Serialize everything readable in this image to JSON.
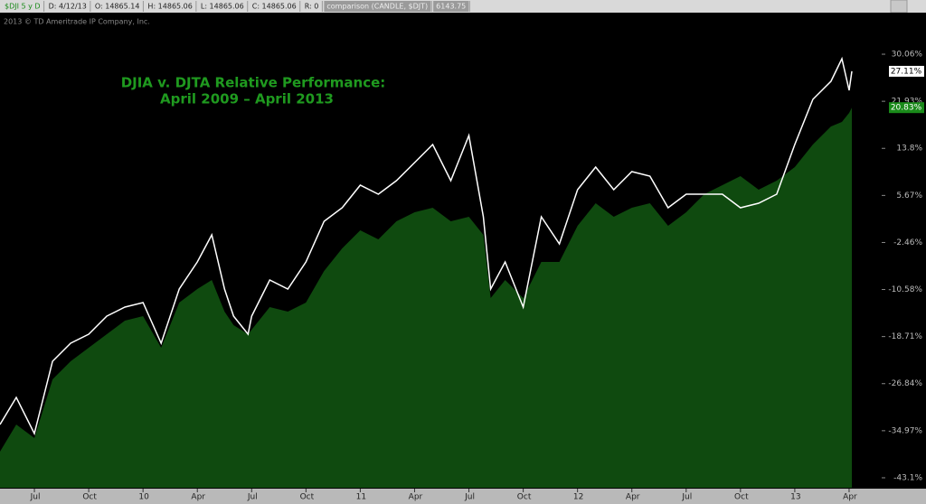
{
  "header": {
    "symbol": "$DJI 5 y D",
    "fields": [
      "D: 4/12/13",
      "O: 14865.14",
      "H: 14865.06",
      "L: 14865.06",
      "C: 14865.06",
      "R: 0"
    ],
    "comparison": "comparison (CANDLE, $DJT)",
    "comparison_value": "6143.75",
    "copyright": "2013 © TD Ameritrade IP Company, Inc."
  },
  "chart_data": {
    "type": "line",
    "title": "DJIA v. DJTA Relative Performance:",
    "subtitle": "April 2009 – April 2013",
    "grid": false,
    "x": [
      1.1,
      2,
      3,
      4,
      5,
      6,
      7,
      8,
      9,
      10,
      11,
      12,
      12.8,
      13.5,
      14,
      14.8,
      15,
      16,
      17,
      18,
      19,
      20,
      21,
      22,
      23,
      24,
      25,
      26,
      27,
      27.8,
      28.2,
      29,
      30,
      31,
      32,
      33,
      34,
      35,
      36,
      37,
      38,
      39,
      40,
      41,
      42,
      43,
      44,
      45,
      46,
      47,
      47.6,
      48,
      48.15
    ],
    "xlim": [
      1.1,
      49.8
    ],
    "xticks": [
      {
        "value": 3,
        "label": "Jul"
      },
      {
        "value": 6,
        "label": "Oct"
      },
      {
        "value": 9,
        "label": "10"
      },
      {
        "value": 12,
        "label": "Apr"
      },
      {
        "value": 15,
        "label": "Jul"
      },
      {
        "value": 18,
        "label": "Oct"
      },
      {
        "value": 21,
        "label": "11"
      },
      {
        "value": 24,
        "label": "Apr"
      },
      {
        "value": 27,
        "label": "Jul"
      },
      {
        "value": 30,
        "label": "Oct"
      },
      {
        "value": 33,
        "label": "12"
      },
      {
        "value": 36,
        "label": "Apr"
      },
      {
        "value": 39,
        "label": "Jul"
      },
      {
        "value": 42,
        "label": "Oct"
      },
      {
        "value": 45,
        "label": "13"
      },
      {
        "value": 48,
        "label": "Apr"
      }
    ],
    "ylim": [
      -44.82,
      37.24
    ],
    "yticks": [
      {
        "value": 30.06,
        "label": "30.06%"
      },
      {
        "value": 21.93,
        "label": "21.93%"
      },
      {
        "value": 13.8,
        "label": "13.8%"
      },
      {
        "value": 5.67,
        "label": "5.67%"
      },
      {
        "value": -2.46,
        "label": "-2.46%"
      },
      {
        "value": -10.58,
        "label": "-10.58%"
      },
      {
        "value": -18.71,
        "label": "-18.71%"
      },
      {
        "value": -26.84,
        "label": "-26.84%"
      },
      {
        "value": -34.97,
        "label": "-34.97%"
      },
      {
        "value": -43.1,
        "label": "-43.1%"
      }
    ],
    "series": [
      {
        "style": "area",
        "color": "#0f4a0f",
        "flag_color": "#1a8a1a",
        "last_value_label": "20.83%",
        "values": [
          -38.58,
          -33.9,
          -36.24,
          -26.1,
          -22.98,
          -20.64,
          -18.3,
          -15.96,
          -15.18,
          -20.64,
          -12.84,
          -10.5,
          -8.94,
          -14.4,
          -16.74,
          -18.3,
          -17.52,
          -13.62,
          -14.4,
          -12.84,
          -7.38,
          -3.48,
          -0.36,
          -1.92,
          1.2,
          2.76,
          3.54,
          1.2,
          1.98,
          -1.14,
          -12.06,
          -8.94,
          -12.06,
          -5.82,
          -5.82,
          0.42,
          4.32,
          1.98,
          3.54,
          4.32,
          0.42,
          2.76,
          5.88,
          7.44,
          9.0,
          6.66,
          8.22,
          10.56,
          14.46,
          17.58,
          18.36,
          19.92,
          20.83
        ]
      },
      {
        "style": "line",
        "color": "#ffffff",
        "flag_color": "#ffffff",
        "last_value_label": "27.11%",
        "values": [
          -33.9,
          -29.22,
          -35.46,
          -22.98,
          -19.86,
          -18.3,
          -15.18,
          -13.62,
          -12.84,
          -19.86,
          -10.5,
          -5.82,
          -1.14,
          -10.5,
          -15.18,
          -18.3,
          -15.18,
          -8.94,
          -10.5,
          -5.82,
          1.2,
          3.54,
          7.44,
          5.88,
          8.22,
          11.34,
          14.46,
          8.22,
          16.02,
          1.98,
          -10.5,
          -5.82,
          -13.62,
          1.98,
          -2.7,
          6.66,
          10.56,
          6.66,
          9.78,
          9.0,
          3.54,
          5.88,
          5.88,
          5.88,
          3.54,
          4.32,
          5.88,
          14.46,
          22.26,
          25.38,
          29.28,
          23.82,
          27.11
        ]
      }
    ]
  }
}
